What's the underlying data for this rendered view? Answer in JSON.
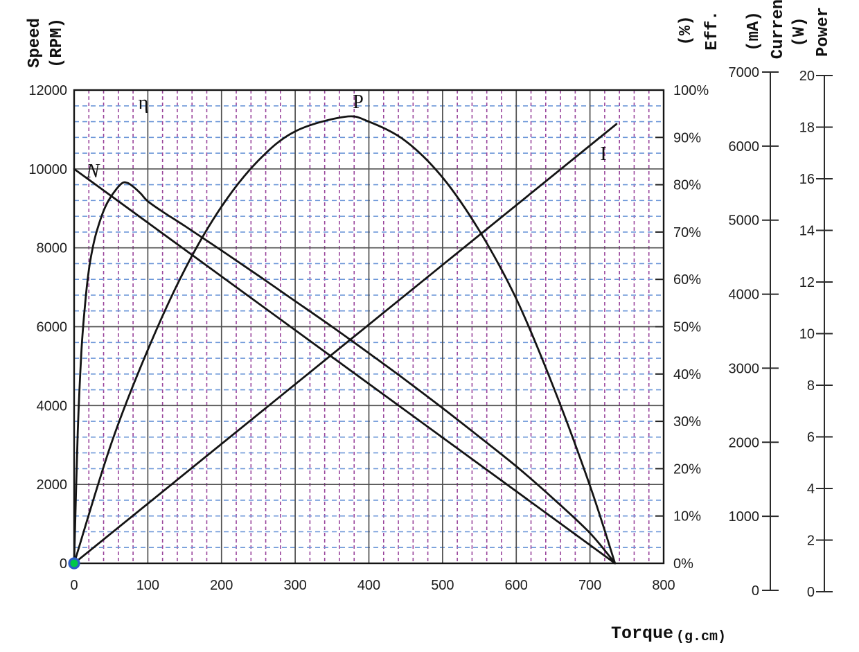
{
  "chart_data": {
    "type": "line",
    "title": "",
    "xlabel": "Torque",
    "x_unit": "(g.cm)",
    "x_axis": {
      "min": 0,
      "max": 800,
      "major_step": 100,
      "minor_step": 20,
      "tick_labels": [
        "0",
        "100",
        "200",
        "300",
        "400",
        "500",
        "600",
        "700",
        "800"
      ]
    },
    "grid": {
      "on": true,
      "major_color": "#4f4f4f",
      "minor_horizontal_color": "#6b96d8",
      "minor_vertical_color": "#99449b",
      "border_color": "#141414",
      "minor_horizontal_step_rpm": 400,
      "minor_vertical_step_gcm": 20
    },
    "axes": {
      "speed": {
        "side": "left",
        "title_lines": [
          "Speed",
          "(RPM)"
        ],
        "min": 0,
        "max": 12000,
        "tick_step": 2000,
        "tick_labels": [
          "0",
          "2000",
          "4000",
          "6000",
          "8000",
          "10000",
          "12000"
        ]
      },
      "efficiency": {
        "side": "right",
        "title_lines": [
          "(%)",
          "Eff."
        ],
        "min": 0,
        "max": 100,
        "tick_step": 10,
        "tick_labels": [
          "0%",
          "10%",
          "20%",
          "30%",
          "40%",
          "50%",
          "60%",
          "70%",
          "80%",
          "90%",
          "100%"
        ]
      },
      "current": {
        "side": "right-outer",
        "title_lines": [
          "(mA)",
          "Curren"
        ],
        "min": 0,
        "max": 7000,
        "tick_step": 1000,
        "tick_labels": [
          "0",
          "1000",
          "2000",
          "3000",
          "4000",
          "5000",
          "6000",
          "7000"
        ]
      },
      "power": {
        "side": "right-outer",
        "title_lines": [
          "(W)",
          "Power"
        ],
        "min": 0,
        "max": 20,
        "tick_step": 2,
        "tick_labels": [
          "0",
          "2",
          "4",
          "6",
          "8",
          "10",
          "12",
          "14",
          "16",
          "18",
          "20"
        ]
      }
    },
    "series": [
      {
        "label": "N",
        "quantity": "speed",
        "axis": "speed",
        "color": "#141414",
        "points": [
          [
            0,
            10000
          ],
          [
            734,
            0
          ]
        ]
      },
      {
        "label": "η",
        "quantity": "efficiency",
        "axis": "efficiency",
        "color": "#141414",
        "points": [
          [
            0,
            0
          ],
          [
            5,
            28
          ],
          [
            10,
            45
          ],
          [
            15,
            55
          ],
          [
            20,
            62
          ],
          [
            25,
            66.5
          ],
          [
            30,
            69.8
          ],
          [
            40,
            74.5
          ],
          [
            50,
            77.5
          ],
          [
            64,
            80.2
          ],
          [
            72,
            80.4
          ],
          [
            80,
            79.6
          ],
          [
            90,
            78.2
          ],
          [
            100,
            76.5
          ],
          [
            120,
            74.3
          ],
          [
            150,
            71.3
          ],
          [
            200,
            66.1
          ],
          [
            250,
            60.8
          ],
          [
            300,
            55.4
          ],
          [
            350,
            50
          ],
          [
            400,
            44.4
          ],
          [
            450,
            38.7
          ],
          [
            500,
            32.8
          ],
          [
            550,
            26.7
          ],
          [
            600,
            20.5
          ],
          [
            650,
            13.7
          ],
          [
            700,
            6.4
          ],
          [
            734,
            0
          ]
        ]
      },
      {
        "label": "P",
        "quantity": "power",
        "axis": "power",
        "color": "#141414",
        "points": [
          [
            0,
            0
          ],
          [
            50,
            4.9
          ],
          [
            100,
            8.8
          ],
          [
            150,
            12.1
          ],
          [
            200,
            14.7
          ],
          [
            250,
            16.6
          ],
          [
            300,
            17.8
          ],
          [
            367,
            18.4
          ],
          [
            400,
            18.2
          ],
          [
            450,
            17.4
          ],
          [
            500,
            15.9
          ],
          [
            550,
            13.7
          ],
          [
            600,
            10.9
          ],
          [
            650,
            7.3
          ],
          [
            700,
            3.2
          ],
          [
            734,
            0
          ]
        ]
      },
      {
        "label": "I",
        "quantity": "current",
        "axis": "current",
        "color": "#141414",
        "points": [
          [
            0,
            0
          ],
          [
            736,
            6300
          ]
        ]
      }
    ],
    "key_points": {
      "no_load_speed_rpm": 10000,
      "stall_torque_gcm": 734,
      "max_efficiency_pct": 80,
      "max_power_w": 18.4,
      "stall_current_ma": 6300
    },
    "origin_marker": {
      "x": 0,
      "y": 0,
      "fill": "#00c84b",
      "ring": "#2d5fc8"
    }
  }
}
